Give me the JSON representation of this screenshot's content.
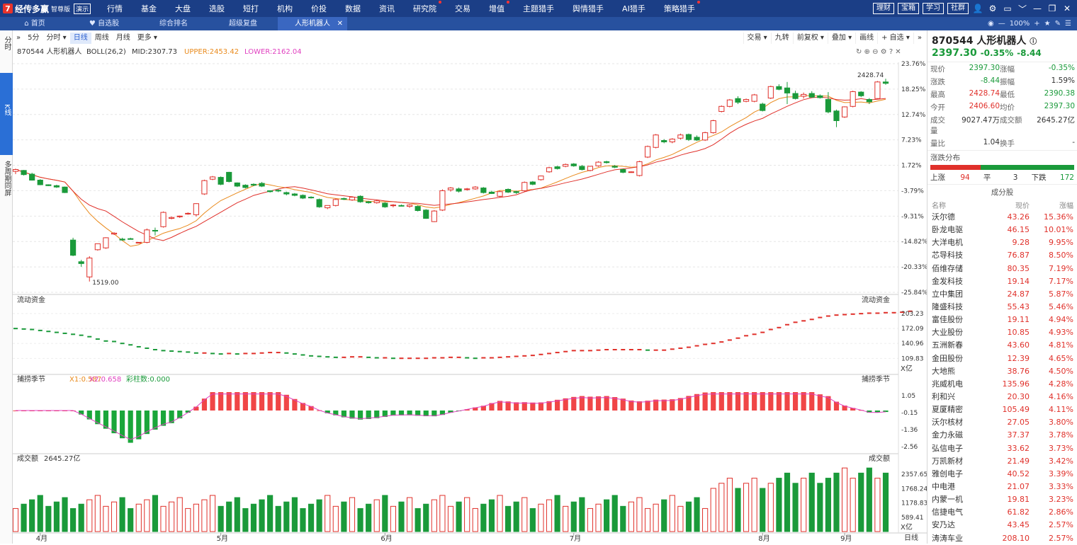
{
  "app": {
    "logo": "7",
    "name": "经传多赢",
    "edition": "智尊版",
    "demo": "演示"
  },
  "topmenu": [
    {
      "label": "行情",
      "dot": false
    },
    {
      "label": "基金",
      "dot": false
    },
    {
      "label": "大盘",
      "dot": false
    },
    {
      "label": "选股",
      "dot": false
    },
    {
      "label": "短打",
      "dot": false
    },
    {
      "label": "机构",
      "dot": false
    },
    {
      "label": "价投",
      "dot": false
    },
    {
      "label": "数据",
      "dot": false
    },
    {
      "label": "资讯",
      "dot": false
    },
    {
      "label": "研究院",
      "dot": true
    },
    {
      "label": "交易",
      "dot": false
    },
    {
      "label": "增值",
      "dot": true
    },
    {
      "label": "主题猎手",
      "dot": false
    },
    {
      "label": "舆情猎手",
      "dot": false
    },
    {
      "label": "AI猎手",
      "dot": false
    },
    {
      "label": "策略猎手",
      "dot": true
    }
  ],
  "topbuttons": [
    "理财",
    "宝箱",
    "学习",
    "社群"
  ],
  "tabs": [
    {
      "label": "首页",
      "icon": "home-icon"
    },
    {
      "label": "自选股",
      "icon": "heart-icon"
    },
    {
      "label": "综合排名",
      "icon": ""
    },
    {
      "label": "超级复盘",
      "icon": ""
    },
    {
      "label": "人形机器人",
      "icon": ""
    }
  ],
  "zoom": "100%",
  "sidetabs": [
    "分时",
    "K线",
    "多周期同屏"
  ],
  "ktoolbar": {
    "left": [
      "»",
      "5分",
      "分时 ▾",
      "日线",
      "周线",
      "月线",
      "更多 ▾"
    ],
    "active": "日线",
    "right": [
      "交易 ▾",
      "九转",
      "前复权 ▾",
      "叠加 ▾",
      "画线",
      "+ 自选 ▾",
      "»"
    ]
  },
  "main": {
    "name": "870544 人形机器人",
    "boll": "BOLL(26,2)",
    "mid": "MID:2307.73",
    "upper": "UPPER:2453.42",
    "lower": "LOWER:2162.04",
    "yticks": [
      "23.76%",
      "18.25%",
      "12.74%",
      "7.23%",
      "1.72%",
      "-3.79%",
      "-9.31%",
      "-14.82%",
      "-20.33%",
      "-25.84%"
    ],
    "high_label": "2428.74",
    "low_label": "1519.00"
  },
  "flow": {
    "title": "流动资金",
    "ticks": [
      "203.23",
      "172.09",
      "140.96",
      "109.83"
    ],
    "unit": "X亿"
  },
  "season": {
    "title": "捕捞季节",
    "x1": "X1:0.587",
    "x2": "X2:0.658",
    "bars": "彩柱数:0.000",
    "ticks": [
      "1.05",
      "-0.15",
      "-1.36",
      "-2.56"
    ]
  },
  "volume": {
    "title": "成交额",
    "value": "2645.27亿",
    "ticks": [
      "2357.65",
      "1768.24",
      "1178.83",
      "589.41"
    ],
    "unit": "X亿"
  },
  "xaxis": {
    "months": [
      "4月",
      "5月",
      "6月",
      "7月",
      "8月",
      "9月"
    ],
    "period": "日线"
  },
  "chart_data": {
    "type": "candlestick",
    "series": [
      {
        "name": "K线",
        "note": "daily candles, % scale",
        "ohlc": [
          [
            0.4,
            1.0,
            -0.2,
            0.8
          ],
          [
            0.6,
            0.7,
            -0.5,
            -0.3
          ],
          [
            -0.2,
            0.1,
            -1.6,
            -1.5
          ],
          [
            -1.5,
            -1.3,
            -2.6,
            -2.5
          ],
          [
            -2.5,
            -2.4,
            -2.8,
            -2.7
          ],
          [
            -2.7,
            -2.5,
            -3.2,
            -3.0
          ],
          [
            -3.0,
            -2.9,
            -4.3,
            -4.2
          ],
          [
            -14.5,
            -14.0,
            -18.0,
            -17.8
          ],
          [
            -19.2,
            -18.8,
            -20.3,
            -19.6
          ],
          [
            -22.5,
            -18.0,
            -23.5,
            -18.4
          ],
          [
            -16.6,
            -15.5,
            -16.8,
            -15.3
          ],
          [
            -16.2,
            -13.9,
            -16.4,
            -14.0
          ],
          [
            -13.2,
            -12.8,
            -13.4,
            -13.0
          ],
          [
            -14.3,
            -14.0,
            -14.6,
            -14.5
          ],
          [
            -14.2,
            -14.0,
            -14.4,
            -14.3
          ],
          [
            -15.0,
            -15.0,
            -15.0,
            -15.0
          ],
          [
            -15.0,
            -12.0,
            -15.2,
            -12.3
          ],
          [
            -12.4,
            -11.8,
            -13.5,
            -12.5
          ],
          [
            -11.6,
            -8.3,
            -11.8,
            -8.5
          ],
          [
            -9.8,
            -9.4,
            -10.0,
            -9.6
          ],
          [
            -9.4,
            -9.2,
            -9.7,
            -9.3
          ],
          [
            -8.8,
            -8.5,
            -9.0,
            -8.7
          ],
          [
            -9.0,
            -6.5,
            -9.4,
            -6.6
          ],
          [
            -4.5,
            -1.4,
            -4.7,
            -1.6
          ],
          [
            -1.3,
            -0.6,
            -1.5,
            -0.8
          ],
          [
            -0.9,
            -0.7,
            -2.6,
            -2.4
          ],
          [
            0.2,
            0.3,
            -2.0,
            -1.8
          ],
          [
            -2.1,
            -2.0,
            -3.0,
            -2.8
          ],
          [
            -2.6,
            -2.4,
            -3.3,
            -3.1
          ],
          [
            -2.4,
            -2.2,
            -2.8,
            -2.6
          ],
          [
            -2.2,
            -1.9,
            -3.0,
            -2.8
          ],
          [
            -3.8,
            -3.7,
            -4.2,
            -4.0
          ],
          [
            -3.7,
            -3.5,
            -4.1,
            -3.8
          ],
          [
            -4.2,
            -4.0,
            -4.8,
            -4.5
          ],
          [
            -4.5,
            -4.3,
            -5.0,
            -4.8
          ],
          [
            -4.8,
            -4.6,
            -5.6,
            -5.4
          ],
          [
            -5.2,
            -5.0,
            -5.5,
            -5.3
          ],
          [
            -5.7,
            -5.5,
            -7.5,
            -7.3
          ],
          [
            -7.5,
            -7.2,
            -7.8,
            -7.0
          ],
          [
            -7.0,
            -5.5,
            -7.2,
            -5.7
          ],
          [
            -5.5,
            -5.3,
            -5.8,
            -5.6
          ],
          [
            -5.8,
            -5.0,
            -6.0,
            -5.2
          ],
          [
            -5.0,
            -4.8,
            -6.4,
            -6.2
          ],
          [
            -6.2,
            -6.0,
            -6.6,
            -6.4
          ],
          [
            -6.4,
            -5.8,
            -6.6,
            -6.0
          ],
          [
            -6.5,
            -6.3,
            -7.5,
            -7.3
          ],
          [
            -7.0,
            -6.7,
            -7.4,
            -6.9
          ],
          [
            -7.0,
            -6.8,
            -7.2,
            -7.1
          ],
          [
            -7.2,
            -6.7,
            -7.5,
            -6.9
          ],
          [
            -7.2,
            -7.0,
            -8.3,
            -8.1
          ],
          [
            -8.0,
            -7.8,
            -9.9,
            -9.8
          ],
          [
            -10.5,
            -8.0,
            -10.6,
            -8.2
          ],
          [
            -8.0,
            -3.5,
            -8.2,
            -3.8
          ],
          [
            -3.6,
            -3.0,
            -4.0,
            -3.2
          ],
          [
            -3.4,
            -3.1,
            -4.2,
            -3.9
          ],
          [
            -3.5,
            -3.2,
            -3.8,
            -3.4
          ],
          [
            -3.4,
            -2.8,
            -3.6,
            -3.0
          ],
          [
            -3.2,
            -3.0,
            -4.4,
            -4.2
          ],
          [
            -4.1,
            -3.8,
            -4.5,
            -4.4
          ],
          [
            -5.0,
            -3.8,
            -5.2,
            -4.0
          ],
          [
            -3.5,
            -3.3,
            -4.3,
            -4.1
          ],
          [
            -4.0,
            -3.8,
            -4.5,
            -4.2
          ],
          [
            -3.8,
            -1.8,
            -4.0,
            -2.0
          ],
          [
            -1.9,
            -1.7,
            -2.6,
            -2.4
          ],
          [
            -1.4,
            -0.5,
            -1.6,
            -0.6
          ],
          [
            0.3,
            1.4,
            0.1,
            1.2
          ],
          [
            1.4,
            1.6,
            0.8,
            1.0
          ],
          [
            1.5,
            2.1,
            1.3,
            1.9
          ],
          [
            2.0,
            2.2,
            1.4,
            1.6
          ],
          [
            1.5,
            1.8,
            0.6,
            0.8
          ],
          [
            0.6,
            1.6,
            0.4,
            1.5
          ],
          [
            1.6,
            2.6,
            1.4,
            2.4
          ],
          [
            2.5,
            2.7,
            2.1,
            2.3
          ],
          [
            1.5,
            1.8,
            1.1,
            1.3
          ],
          [
            0.8,
            1.0,
            0.0,
            0.2
          ],
          [
            0.2,
            0.4,
            0.1,
            0.3
          ],
          [
            -0.5,
            2.7,
            -0.7,
            2.5
          ],
          [
            3.5,
            6.0,
            3.3,
            5.8
          ],
          [
            5.6,
            8.5,
            5.4,
            8.3
          ],
          [
            7.1,
            7.4,
            6.5,
            6.8
          ],
          [
            6.8,
            7.6,
            6.5,
            7.4
          ],
          [
            7.6,
            8.6,
            7.3,
            8.3
          ],
          [
            8.4,
            8.6,
            7.0,
            7.3
          ],
          [
            7.8,
            8.2,
            7.0,
            7.2
          ],
          [
            7.2,
            9.0,
            7.0,
            8.8
          ],
          [
            8.8,
            11.6,
            8.6,
            11.4
          ],
          [
            13.4,
            14.7,
            13.2,
            14.5
          ],
          [
            14.5,
            16.1,
            14.3,
            15.9
          ],
          [
            16.2,
            16.7,
            15.0,
            15.4
          ],
          [
            15.6,
            16.2,
            15.4,
            16.0
          ],
          [
            15.6,
            17.2,
            15.4,
            17.0
          ],
          [
            15.0,
            15.3,
            13.4,
            13.6
          ],
          [
            16.3,
            19.0,
            16.1,
            18.8
          ],
          [
            18.8,
            19.3,
            18.0,
            18.2
          ],
          [
            18.5,
            19.8,
            15.0,
            17.4
          ],
          [
            17.3,
            17.9,
            16.0,
            16.2
          ],
          [
            16.7,
            17.5,
            16.2,
            17.1
          ],
          [
            17.3,
            17.8,
            16.4,
            16.5
          ],
          [
            16.8,
            17.1,
            16.2,
            16.4
          ],
          [
            16.0,
            17.6,
            13.0,
            13.3
          ],
          [
            13.5,
            13.8,
            10.0,
            11.4
          ],
          [
            12.2,
            14.5,
            12.0,
            14.4
          ],
          [
            14.5,
            17.9,
            14.3,
            17.7
          ],
          [
            17.6,
            17.8,
            16.5,
            16.8
          ],
          [
            16.0,
            16.3,
            15.0,
            15.5
          ],
          [
            16.2,
            20.0,
            16.0,
            19.8
          ],
          [
            19.8,
            20.5,
            19.2,
            19.5
          ]
        ]
      },
      {
        "name": "MID",
        "note": "approx line"
      },
      {
        "name": "UPPER",
        "note": "approx line"
      }
    ],
    "flow_values": [
      172,
      171,
      170,
      168,
      166,
      164,
      162,
      160,
      158,
      155,
      150,
      146,
      145,
      141,
      138,
      134,
      131,
      128,
      126,
      125,
      124,
      123,
      121,
      121,
      120,
      119,
      120,
      119,
      120,
      120,
      121,
      122,
      122,
      121,
      119,
      117,
      115,
      114,
      113,
      112,
      112,
      113,
      113,
      112,
      111,
      111,
      110,
      110,
      110,
      110,
      110,
      111,
      111,
      112,
      112,
      111,
      110,
      111,
      111,
      112,
      113,
      114,
      115,
      116,
      118,
      120,
      122,
      124,
      126,
      126,
      126,
      127,
      128,
      128,
      128,
      128,
      128,
      127,
      127,
      127,
      129,
      131,
      133,
      136,
      139,
      141,
      144,
      148,
      152,
      157,
      160,
      164,
      170,
      174,
      180,
      185,
      188,
      191,
      195,
      198,
      200,
      201,
      202,
      203,
      204,
      204,
      205,
      205,
      206,
      208
    ]
  }
}
